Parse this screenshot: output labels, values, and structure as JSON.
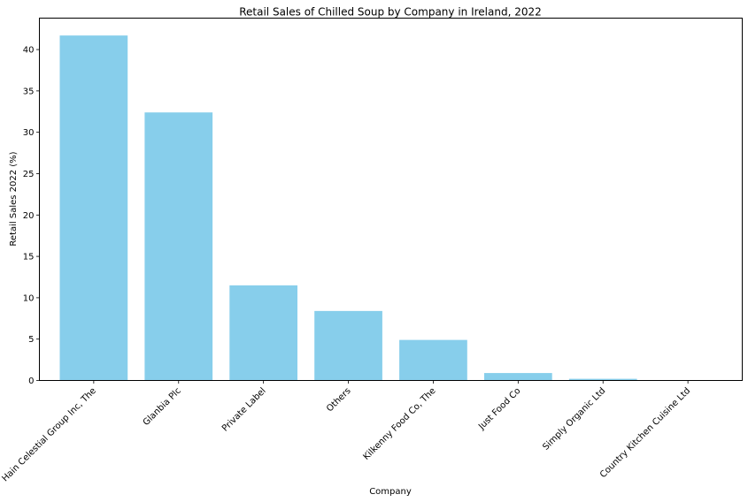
{
  "chart_data": {
    "type": "bar",
    "title": "Retail Sales of Chilled Soup by Company in Ireland, 2022",
    "xlabel": "Company",
    "ylabel": "Retail Sales 2022 (%)",
    "categories": [
      "Hain Celestial Group Inc, The",
      "Glanbia Plc",
      "Private Label",
      "Others",
      "Kilkenny Food Co, The",
      "Just Food Co",
      "Simply Organic Ltd",
      "Country Kitchen Cuisine Ltd"
    ],
    "values": [
      41.7,
      32.4,
      11.5,
      8.4,
      4.9,
      0.9,
      0.2,
      0.0
    ],
    "ylim": [
      0,
      43.8
    ],
    "yticks": [
      0,
      5,
      10,
      15,
      20,
      25,
      30,
      35,
      40
    ],
    "grid": false,
    "legend": "none",
    "bar_color": "#87ceeb"
  }
}
